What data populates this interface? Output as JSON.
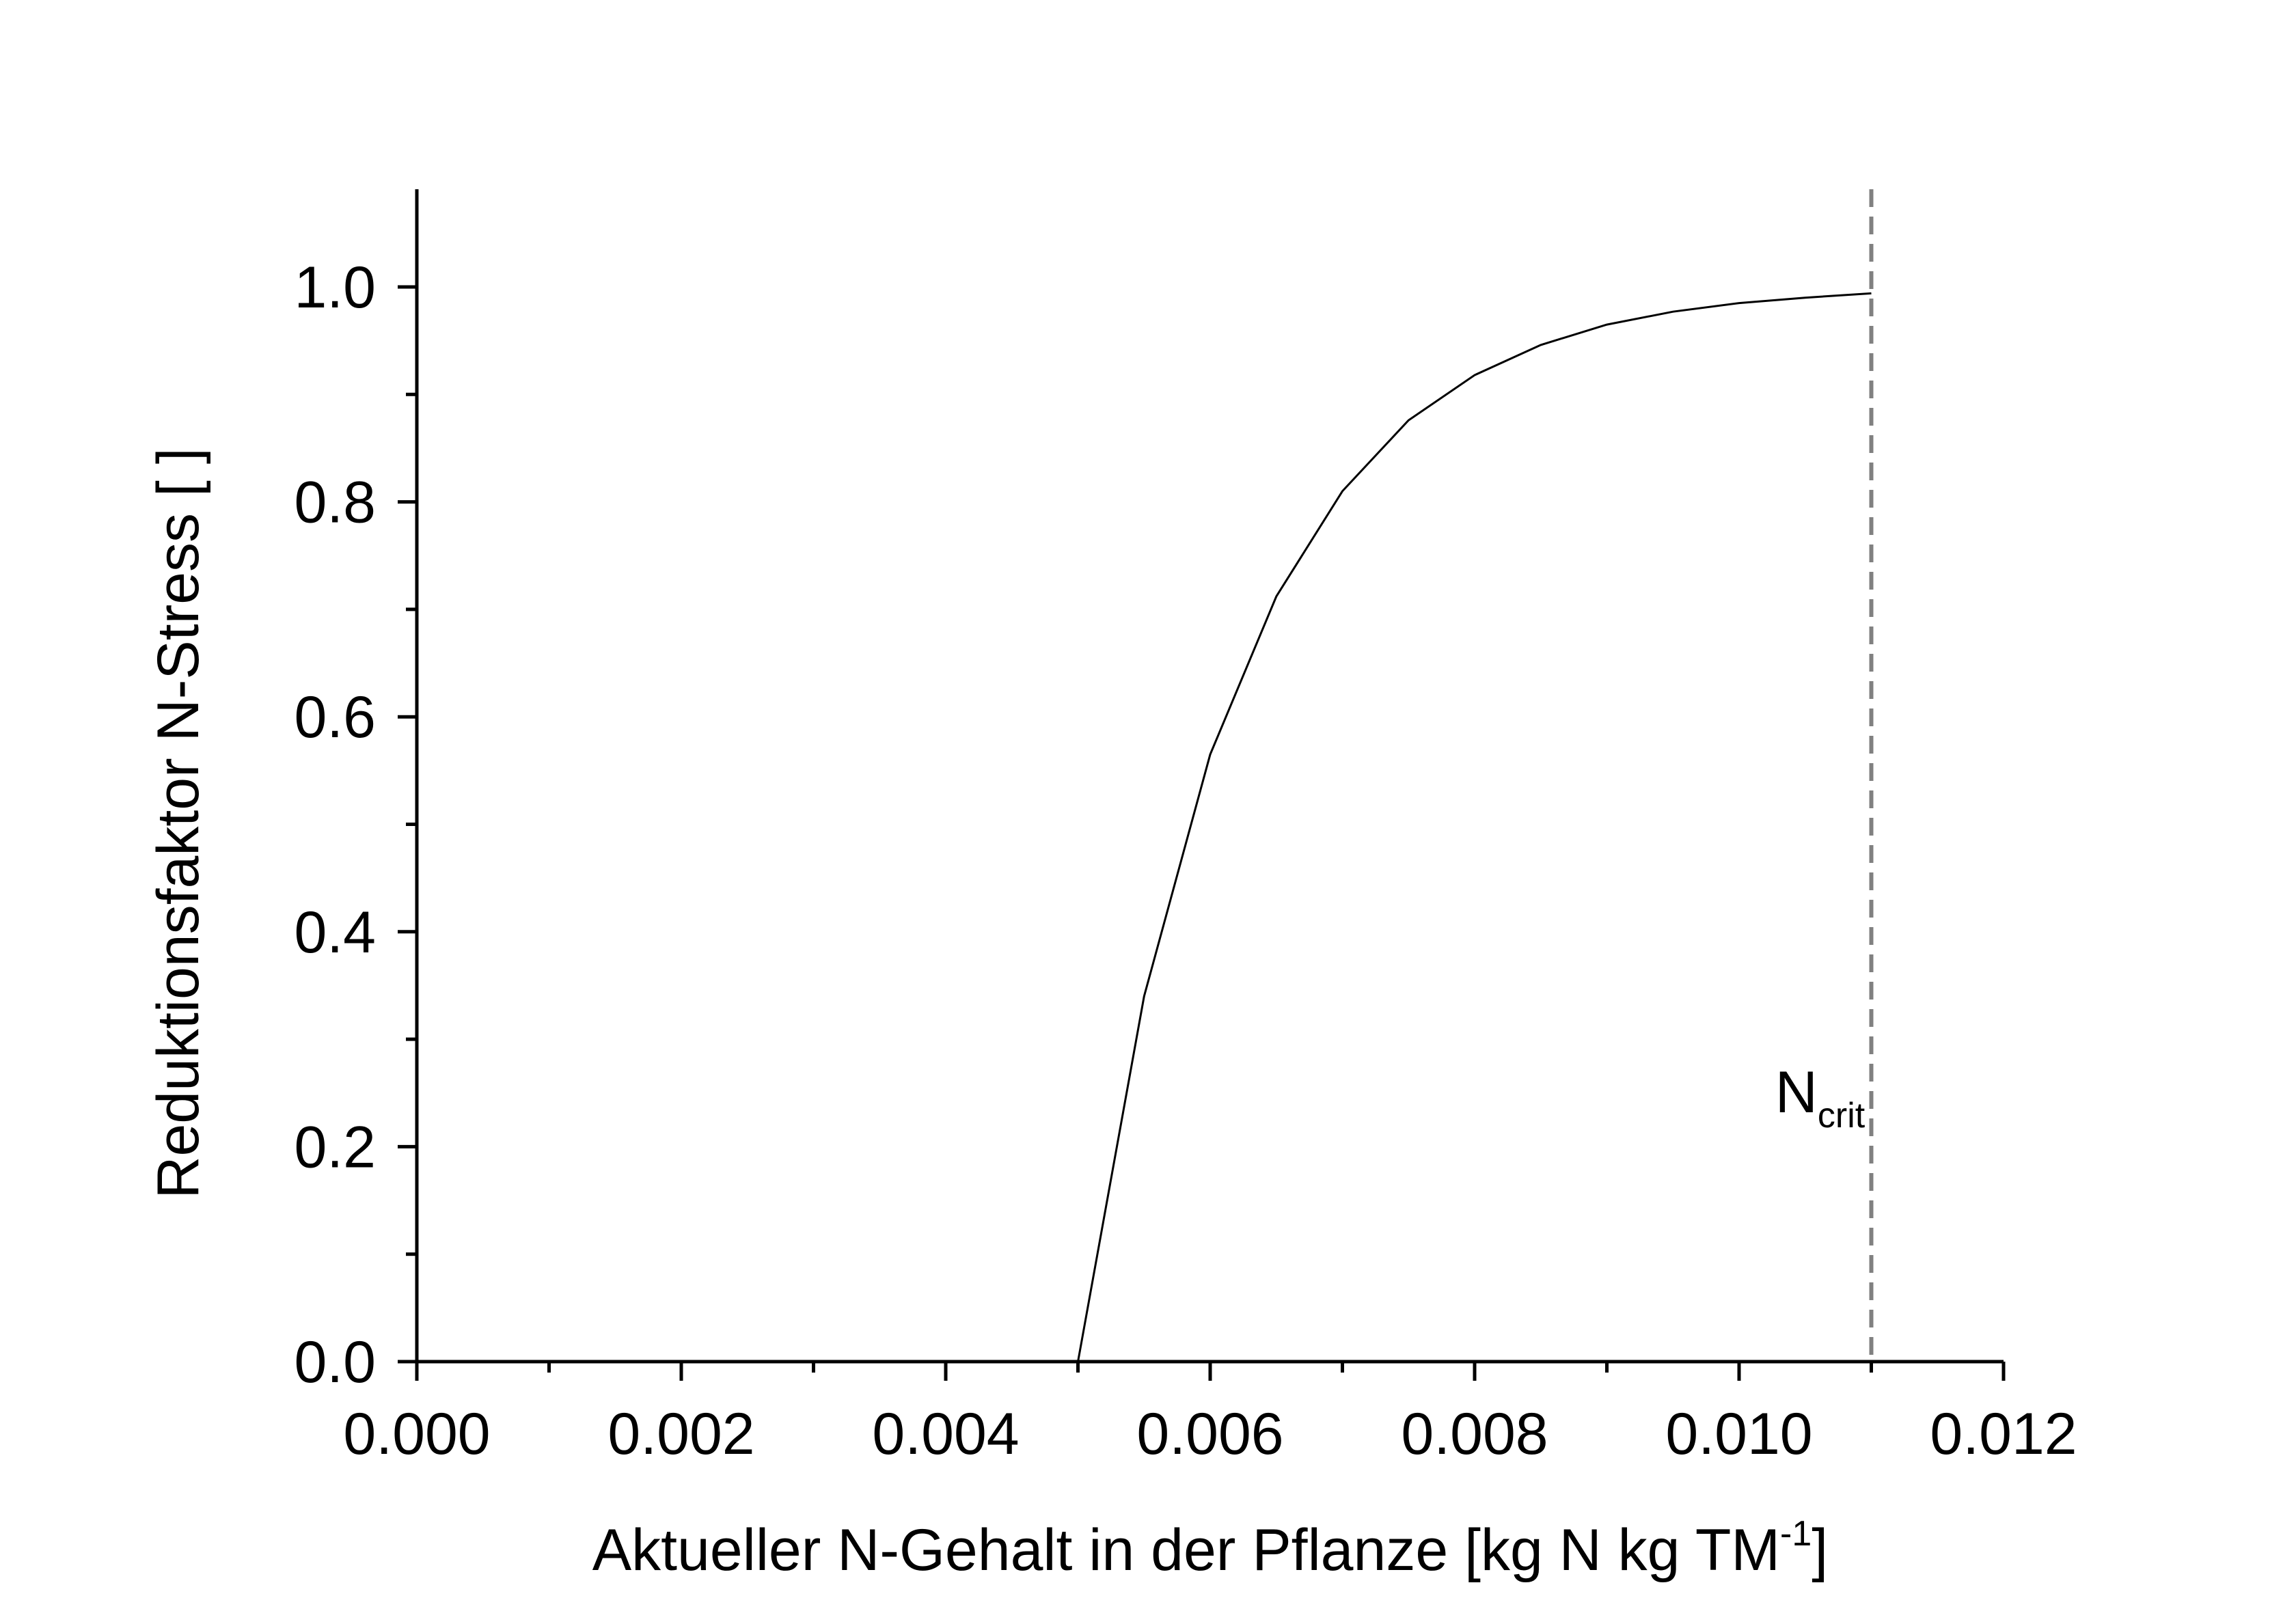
{
  "chart_data": {
    "type": "line",
    "xlabel": "Aktueller N-Gehalt in der Pflanze [kg N kg TM",
    "xlabel_sup": "-1",
    "xlabel_end": "]",
    "ylabel": "Reduktionsfaktor N-Stress [ ]",
    "xlim": [
      0,
      0.012
    ],
    "ylim": [
      0,
      1.0
    ],
    "x_ticks": [
      0,
      0.002,
      0.004,
      0.006,
      0.008,
      0.01,
      0.012
    ],
    "x_tick_labels": [
      "0.000",
      "0.002",
      "0.004",
      "0.006",
      "0.008",
      "0.010",
      "0.012"
    ],
    "y_ticks": [
      0,
      0.2,
      0.4,
      0.6,
      0.8,
      1.0
    ],
    "y_tick_labels": [
      "0.0",
      "0.2",
      "0.4",
      "0.6",
      "0.8",
      "1.0"
    ],
    "grid": false,
    "series": [
      {
        "x": [
          0.005,
          0.0055,
          0.006,
          0.0065,
          0.007,
          0.0075,
          0.008,
          0.0085,
          0.009,
          0.0095,
          0.01,
          0.0105,
          0.011
        ],
        "y": [
          0.0,
          0.34,
          0.565,
          0.712,
          0.81,
          0.876,
          0.918,
          0.946,
          0.965,
          0.977,
          0.985,
          0.99,
          0.994
        ],
        "color": "#000000"
      }
    ],
    "vline": {
      "x": 0.011,
      "style": "dashed",
      "color": "#808080"
    },
    "annotation": {
      "text": "N",
      "sub": "crit",
      "x": 0.011
    }
  }
}
